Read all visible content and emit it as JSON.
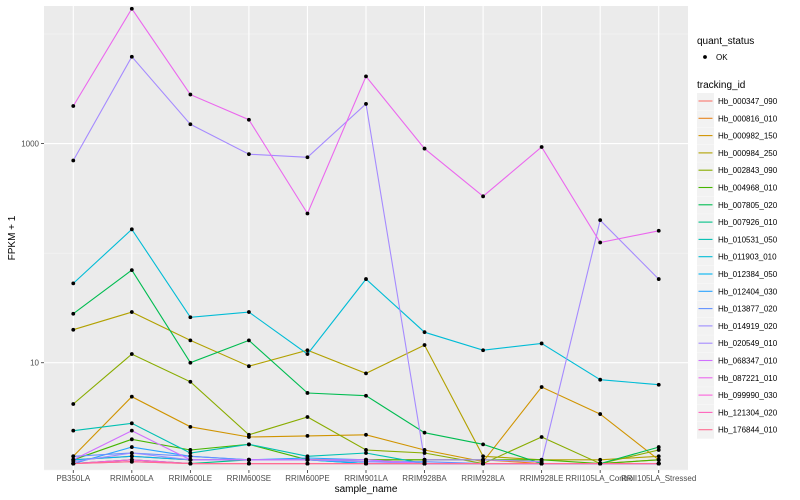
{
  "chart_data": {
    "type": "line",
    "title": "",
    "xlabel": "sample_name",
    "ylabel": "FPKM + 1",
    "y_scale": "log10",
    "ylim": [
      1.05,
      18000
    ],
    "y_ticks": [
      10,
      1000
    ],
    "y_tick_labels": [
      "10",
      "1000"
    ],
    "categories": [
      "PB350LA",
      "RRIM600LA",
      "RRIM600LE",
      "RRIM600SE",
      "RRIM600PE",
      "RRIM901LA",
      "RRIM928BA",
      "RRIM928LA",
      "RRIM928LE",
      "RRII105LA_Control",
      "RRII105LA_Stressed"
    ],
    "series": [
      {
        "name": "Hb_000347_090",
        "color": "#F8766D",
        "values": [
          1.2,
          1.3,
          1.2,
          1.2,
          1.2,
          1.2,
          1.2,
          1.2,
          1.2,
          1.2,
          1.2
        ]
      },
      {
        "name": "Hb_000816_010",
        "color": "#E7851E",
        "values": [
          1.3,
          1.4,
          1.3,
          1.3,
          1.3,
          1.3,
          1.3,
          1.3,
          1.2,
          1.2,
          1.3
        ]
      },
      {
        "name": "Hb_000982_150",
        "color": "#D09400",
        "values": [
          1.4,
          4.9,
          2.6,
          2.1,
          2.15,
          2.2,
          1.6,
          1.25,
          6.0,
          3.4,
          1.3
        ]
      },
      {
        "name": "Hb_000984_250",
        "color": "#B2A100",
        "values": [
          20,
          29,
          16,
          9.3,
          13,
          8.0,
          14.5,
          1.4,
          1.3,
          1.3,
          1.4
        ]
      },
      {
        "name": "Hb_002843_090",
        "color": "#89AC00",
        "values": [
          4.2,
          12,
          6.7,
          2.2,
          3.2,
          1.6,
          1.5,
          1.2,
          2.1,
          1.2,
          1.6
        ]
      },
      {
        "name": "Hb_004968_010",
        "color": "#45B500",
        "values": [
          1.3,
          2.0,
          1.6,
          1.8,
          1.3,
          1.3,
          1.3,
          1.3,
          1.3,
          1.2,
          1.3
        ]
      },
      {
        "name": "Hb_007805_020",
        "color": "#00BC51",
        "values": [
          28,
          70,
          10,
          16,
          5.3,
          5.0,
          2.3,
          1.8,
          1.2,
          1.2,
          1.7
        ]
      },
      {
        "name": "Hb_007926_010",
        "color": "#00C087",
        "values": [
          1.2,
          1.3,
          1.2,
          1.3,
          1.3,
          1.2,
          1.2,
          1.2,
          1.2,
          1.2,
          1.2
        ]
      },
      {
        "name": "Hb_010531_050",
        "color": "#00C0B2",
        "values": [
          2.4,
          2.8,
          1.5,
          1.8,
          1.4,
          1.5,
          1.2,
          1.2,
          1.2,
          1.2,
          1.2
        ]
      },
      {
        "name": "Hb_011903_010",
        "color": "#00BCD6",
        "values": [
          53,
          165,
          26,
          29,
          12,
          58,
          19,
          13,
          15,
          7.0,
          6.3
        ]
      },
      {
        "name": "Hb_012384_050",
        "color": "#00B3F2",
        "values": [
          1.3,
          1.4,
          1.3,
          1.3,
          1.3,
          1.2,
          1.2,
          1.2,
          1.2,
          1.2,
          1.2
        ]
      },
      {
        "name": "Hb_012404_030",
        "color": "#29A3FF",
        "values": [
          1.2,
          1.7,
          1.4,
          1.3,
          1.35,
          1.3,
          1.2,
          1.2,
          1.2,
          1.2,
          1.2
        ]
      },
      {
        "name": "Hb_013877_020",
        "color": "#6391FF",
        "values": [
          1.4,
          1.5,
          1.4,
          1.3,
          1.3,
          1.25,
          1.25,
          1.2,
          1.2,
          1.2,
          1.2
        ]
      },
      {
        "name": "Hb_014919_020",
        "color": "#9C8DFF",
        "values": [
          1.25,
          1.5,
          1.3,
          1.3,
          1.3,
          1.25,
          1.2,
          1.2,
          1.2,
          1.2,
          1.2
        ]
      },
      {
        "name": "Hb_020549_010",
        "color": "#A58AFF",
        "values": [
          700,
          6200,
          1500,
          800,
          750,
          2300,
          1.3,
          1.3,
          1.25,
          200,
          58
        ]
      },
      {
        "name": "Hb_068347_010",
        "color": "#D070FF",
        "values": [
          1.3,
          2.4,
          1.3,
          1.3,
          1.3,
          1.3,
          1.2,
          1.2,
          1.2,
          1.2,
          1.2
        ]
      },
      {
        "name": "Hb_087221_010",
        "color": "#EB67EE",
        "values": [
          2200,
          17000,
          2800,
          1650,
          230,
          4100,
          900,
          330,
          930,
          125,
          160
        ]
      },
      {
        "name": "Hb_099990_030",
        "color": "#FA62DB",
        "values": [
          1.2,
          1.3,
          1.2,
          1.2,
          1.2,
          1.2,
          1.2,
          1.2,
          1.2,
          1.2,
          1.2
        ]
      },
      {
        "name": "Hb_121304_020",
        "color": "#FF62BC",
        "values": [
          1.2,
          1.25,
          1.2,
          1.2,
          1.2,
          1.2,
          1.2,
          1.2,
          1.2,
          1.2,
          1.2
        ]
      },
      {
        "name": "Hb_176844_010",
        "color": "#FF6C91",
        "values": [
          1.2,
          1.25,
          1.2,
          1.2,
          1.2,
          1.2,
          1.2,
          1.2,
          1.2,
          1.2,
          1.2
        ]
      }
    ],
    "legend": {
      "quant_title": "quant_status",
      "quant_label": "OK",
      "tracking_title": "tracking_id",
      "placement": "right"
    },
    "grid": true
  }
}
